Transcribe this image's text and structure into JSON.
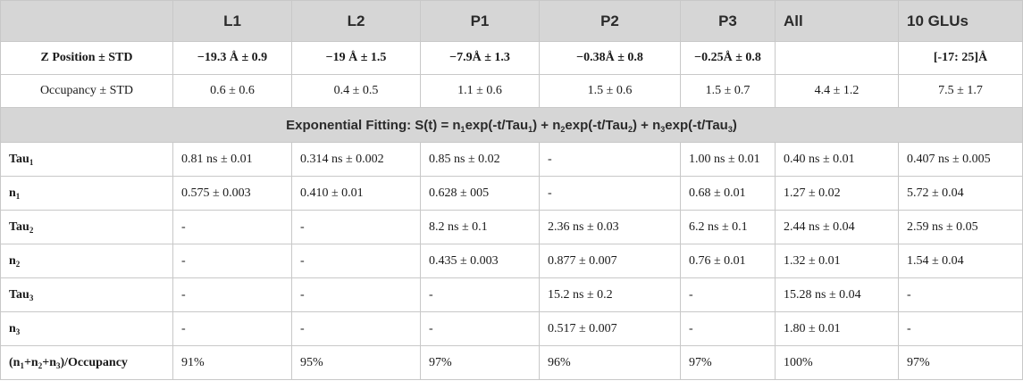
{
  "columns": [
    "",
    "L1",
    "L2",
    "P1",
    "P2",
    "P3",
    "All",
    "10 GLUs"
  ],
  "top_rows": [
    {
      "label": "Z Position ± STD",
      "bold": true,
      "cells": [
        "−19.3 Å ± 0.9",
        "−19 Å ± 1.5",
        "−7.9Å ± 1.3",
        "−0.38Å ± 0.8",
        "−0.25Å ± 0.8",
        "",
        "[-17: 25]Å"
      ]
    },
    {
      "label": "Occupancy ± STD",
      "bold": false,
      "cells": [
        "0.6 ± 0.6",
        "0.4 ± 0.5",
        "1.1 ± 0.6",
        "1.5 ± 0.6",
        "1.5 ± 0.7",
        "4.4 ± 1.2",
        "7.5 ± 1.7"
      ]
    }
  ],
  "section_title": {
    "prefix": "Exponential Fitting: S(t) = n",
    "parts": [
      {
        "sub": "1",
        "text": "exp(-t/Tau"
      },
      {
        "sub": "1",
        "text": ") + n"
      },
      {
        "sub": "2",
        "text": "exp(-t/Tau"
      },
      {
        "sub": "2",
        "text": ") + n"
      },
      {
        "sub": "3",
        "text": "exp(-t/Tau"
      },
      {
        "sub": "3",
        "text": ")"
      }
    ]
  },
  "fit_rows": [
    {
      "label_parts": [
        {
          "text": "Tau",
          "sub": "1"
        }
      ],
      "cells": [
        "0.81 ns ± 0.01",
        "0.314 ns ± 0.002",
        "0.85 ns ± 0.02",
        "-",
        "1.00 ns ± 0.01",
        "0.40 ns ± 0.01",
        "0.407 ns ± 0.005"
      ]
    },
    {
      "label_parts": [
        {
          "text": "n",
          "sub": "1"
        }
      ],
      "cells": [
        "0.575 ± 0.003",
        "0.410 ± 0.01",
        "0.628 ± 005",
        "-",
        "0.68 ± 0.01",
        "1.27 ± 0.02",
        "5.72 ± 0.04"
      ]
    },
    {
      "label_parts": [
        {
          "text": "Tau",
          "sub": "2"
        }
      ],
      "cells": [
        "-",
        "-",
        "8.2 ns ± 0.1",
        "2.36 ns ± 0.03",
        "6.2 ns ± 0.1",
        "2.44 ns ± 0.04",
        "2.59 ns ± 0.05"
      ]
    },
    {
      "label_parts": [
        {
          "text": "n",
          "sub": "2"
        }
      ],
      "cells": [
        "-",
        "-",
        "0.435 ± 0.003",
        "0.877 ± 0.007",
        "0.76 ± 0.01",
        "1.32 ± 0.01",
        "1.54 ± 0.04"
      ]
    },
    {
      "label_parts": [
        {
          "text": "Tau",
          "sub": "3"
        }
      ],
      "cells": [
        "-",
        "-",
        "-",
        "15.2 ns ± 0.2",
        "-",
        "15.28 ns ± 0.04",
        "-"
      ]
    },
    {
      "label_parts": [
        {
          "text": "n",
          "sub": "3"
        }
      ],
      "cells": [
        "-",
        "-",
        "-",
        "0.517 ± 0.007",
        "-",
        "1.80 ± 0.01",
        "-"
      ]
    },
    {
      "label_parts": [
        {
          "text": "(n",
          "sub": "1"
        },
        {
          "text": "+n",
          "sub": "2"
        },
        {
          "text": "+n",
          "sub": "3"
        },
        {
          "text": ")/Occupancy",
          "sub": ""
        }
      ],
      "cells": [
        "91%",
        "95%",
        "97%",
        "96%",
        "97%",
        "100%",
        "97%"
      ]
    }
  ]
}
